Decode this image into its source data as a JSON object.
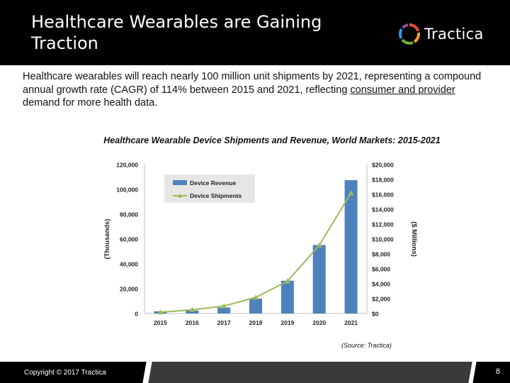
{
  "slide": {
    "title_line1": "Healthcare Wearables are Gaining",
    "title_line2": "Traction",
    "logo_text": "Tractica",
    "intro_part1": "Healthcare wearables will reach nearly 100 million unit shipments by 2021, representing a compound annual growth rate (CAGR) of 114% between 2015 and 2021, reflecting ",
    "intro_underlined": "consumer and provider",
    "intro_part2": " demand for more health data.",
    "source": "(Source: Tractica)",
    "copyright": "Copyright © 2017 Tractica",
    "page_number": "8"
  },
  "colors": {
    "header_bg": "#000000",
    "bar": "#4f81bd",
    "line": "#9bbb59"
  },
  "chart_data": {
    "type": "bar",
    "title": "Healthcare Wearable Device Shipments and Revenue, World Markets:  2015-2021",
    "categories": [
      "2015",
      "2016",
      "2017",
      "2018",
      "2019",
      "2020",
      "2021"
    ],
    "series": [
      {
        "name": "Device Revenue",
        "axis": "right",
        "type": "bar",
        "values": [
          300,
          400,
          800,
          2000,
          4400,
          9200,
          17900
        ]
      },
      {
        "name": "Device Shipments",
        "axis": "left",
        "type": "line",
        "values": [
          1000,
          3000,
          6000,
          13000,
          26000,
          55000,
          97000
        ]
      }
    ],
    "left_axis": {
      "label": "(Thousands)",
      "ylim": [
        0,
        120000
      ],
      "ticks": [
        "0",
        "20,000",
        "40,000",
        "60,000",
        "80,000",
        "100,000",
        "120,000"
      ]
    },
    "right_axis": {
      "label": "($ Millions)",
      "ylim": [
        0,
        20000
      ],
      "ticks": [
        "$0",
        "$2,000",
        "$4,000",
        "$6,000",
        "$8,000",
        "$10,000",
        "$12,000",
        "$14,000",
        "$16,000",
        "$18,000",
        "$20,000"
      ]
    },
    "grid": false,
    "legend": "top-left"
  }
}
